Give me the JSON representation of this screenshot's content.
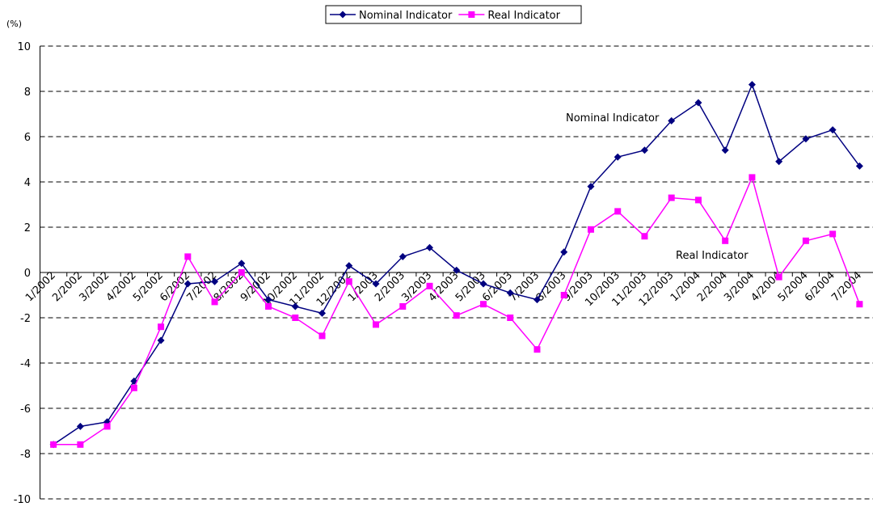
{
  "chart_data": {
    "type": "line",
    "y_unit_label": "(%)",
    "categories": [
      "1/2002",
      "2/2002",
      "3/2002",
      "4/2002",
      "5/2002",
      "6/2002",
      "7/2002",
      "8/2002",
      "9/2002",
      "10/2002",
      "11/2002",
      "12/2002",
      "1/2003",
      "2/2003",
      "3/2003",
      "4/2003",
      "5/2003",
      "6/2003",
      "7/2003",
      "8/2003",
      "9/2003",
      "10/2003",
      "11/2003",
      "12/2003",
      "1/2004",
      "2/2004",
      "3/2004",
      "4/2004",
      "5/2004",
      "6/2004",
      "7/2004"
    ],
    "series": [
      {
        "name": "Nominal Indicator",
        "color": "#000080",
        "marker": "diamond",
        "values": [
          -7.6,
          -6.8,
          -6.6,
          -4.8,
          -3.0,
          -0.5,
          -0.4,
          0.4,
          -1.2,
          -1.5,
          -1.8,
          0.3,
          -0.5,
          0.7,
          1.1,
          0.1,
          -0.5,
          -0.9,
          -1.2,
          0.9,
          3.8,
          5.1,
          5.4,
          6.7,
          7.5,
          5.4,
          8.3,
          4.9,
          5.9,
          6.3,
          4.7
        ]
      },
      {
        "name": "Real Indicator",
        "color": "#ff00ff",
        "marker": "square",
        "values": [
          -7.6,
          -7.6,
          -6.8,
          -5.1,
          -2.4,
          0.7,
          -1.3,
          0.0,
          -1.5,
          -2.0,
          -2.8,
          -0.4,
          -2.3,
          -1.5,
          -0.6,
          -1.9,
          -1.4,
          -2.0,
          -3.4,
          -1.0,
          1.9,
          2.7,
          1.6,
          3.3,
          3.2,
          1.4,
          4.2,
          -0.2,
          1.4,
          1.7,
          -1.4
        ]
      }
    ],
    "annotations": [
      "Nominal Indicator",
      "Real Indicator"
    ],
    "ylim": [
      -10,
      10
    ],
    "yticks": [
      -10,
      -8,
      -6,
      -4,
      -2,
      0,
      2,
      4,
      6,
      8,
      10
    ],
    "grid": true,
    "legend": "top"
  }
}
